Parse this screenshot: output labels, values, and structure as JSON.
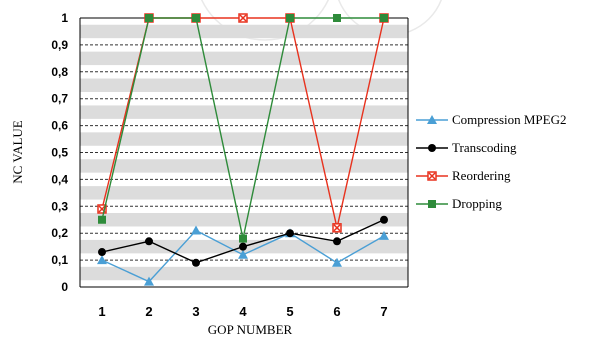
{
  "chart_data": {
    "type": "line",
    "xlabel": "GOP NUMBER",
    "ylabel": "NC VALUE",
    "categories": [
      "1",
      "2",
      "3",
      "4",
      "5",
      "6",
      "7"
    ],
    "ylim": [
      0,
      1
    ],
    "yticks": [
      "0",
      "0,1",
      "0,2",
      "0,3",
      "0,4",
      "0,5",
      "0,6",
      "0,7",
      "0,8",
      "0,9",
      "1"
    ],
    "grid": "horizontal dashed with gray bands",
    "legend_position": "right",
    "series": [
      {
        "name": "Compression MPEG2",
        "color": "#4a9fd5",
        "marker": "triangle",
        "values": [
          0.1,
          0.02,
          0.21,
          0.12,
          0.2,
          0.09,
          0.19
        ]
      },
      {
        "name": "Transcoding",
        "color": "#000000",
        "marker": "circle",
        "values": [
          0.13,
          0.17,
          0.09,
          0.15,
          0.2,
          0.17,
          0.25
        ]
      },
      {
        "name": "Reordering",
        "color": "#e8321e",
        "marker": "square-x",
        "values": [
          0.29,
          1.0,
          1.0,
          1.0,
          1.0,
          0.22,
          1.0
        ]
      },
      {
        "name": "Dropping",
        "color": "#2e8b3a",
        "marker": "square",
        "values": [
          0.25,
          1.0,
          1.0,
          0.18,
          1.0,
          1.0,
          1.0
        ]
      }
    ]
  }
}
